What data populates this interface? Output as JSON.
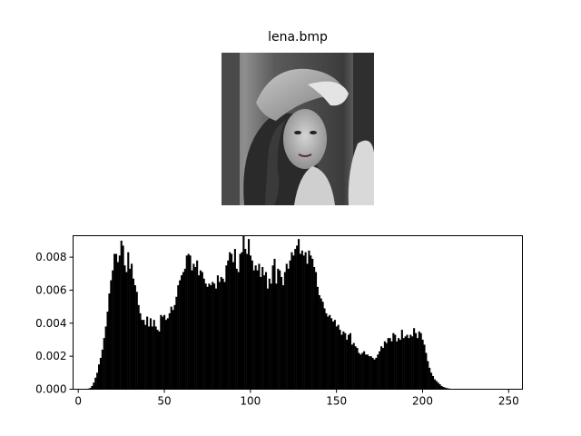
{
  "image_panel": {
    "title": "lena.bmp",
    "image_description": "grayscale photograph thumbnail"
  },
  "chart_data": {
    "type": "bar",
    "title": "",
    "xlabel": "",
    "ylabel": "",
    "xlim": [
      -3,
      258
    ],
    "ylim": [
      0,
      0.0093
    ],
    "xticks": [
      0,
      50,
      100,
      150,
      200,
      250
    ],
    "yticks": [
      0.0,
      0.002,
      0.004,
      0.006,
      0.008
    ],
    "ytick_labels": [
      "0.000",
      "0.002",
      "0.004",
      "0.006",
      "0.008"
    ],
    "bar_color": "#000000",
    "grid": false,
    "x": [
      0,
      1,
      2,
      3,
      4,
      5,
      6,
      7,
      8,
      9,
      10,
      11,
      12,
      13,
      14,
      15,
      16,
      17,
      18,
      19,
      20,
      21,
      22,
      23,
      24,
      25,
      26,
      27,
      28,
      29,
      30,
      31,
      32,
      33,
      34,
      35,
      36,
      37,
      38,
      39,
      40,
      41,
      42,
      43,
      44,
      45,
      46,
      47,
      48,
      49,
      50,
      51,
      52,
      53,
      54,
      55,
      56,
      57,
      58,
      59,
      60,
      61,
      62,
      63,
      64,
      65,
      66,
      67,
      68,
      69,
      70,
      71,
      72,
      73,
      74,
      75,
      76,
      77,
      78,
      79,
      80,
      81,
      82,
      83,
      84,
      85,
      86,
      87,
      88,
      89,
      90,
      91,
      92,
      93,
      94,
      95,
      96,
      97,
      98,
      99,
      100,
      101,
      102,
      103,
      104,
      105,
      106,
      107,
      108,
      109,
      110,
      111,
      112,
      113,
      114,
      115,
      116,
      117,
      118,
      119,
      120,
      121,
      122,
      123,
      124,
      125,
      126,
      127,
      128,
      129,
      130,
      131,
      132,
      133,
      134,
      135,
      136,
      137,
      138,
      139,
      140,
      141,
      142,
      143,
      144,
      145,
      146,
      147,
      148,
      149,
      150,
      151,
      152,
      153,
      154,
      155,
      156,
      157,
      158,
      159,
      160,
      161,
      162,
      163,
      164,
      165,
      166,
      167,
      168,
      169,
      170,
      171,
      172,
      173,
      174,
      175,
      176,
      177,
      178,
      179,
      180,
      181,
      182,
      183,
      184,
      185,
      186,
      187,
      188,
      189,
      190,
      191,
      192,
      193,
      194,
      195,
      196,
      197,
      198,
      199,
      200,
      201,
      202,
      203,
      204,
      205,
      206,
      207,
      208,
      209,
      210,
      211,
      212,
      213,
      214,
      215,
      216,
      217,
      218,
      219,
      220,
      221,
      222,
      223,
      224,
      225,
      226,
      227,
      228,
      229,
      230,
      231,
      232,
      233,
      234,
      235,
      236,
      237,
      238,
      239,
      240,
      241,
      242,
      243,
      244,
      245,
      246,
      247,
      248,
      249,
      250,
      251,
      252,
      253,
      254,
      255
    ],
    "values": [
      0,
      0,
      0,
      0,
      0,
      1e-05,
      4e-05,
      8e-05,
      0.0002,
      0.0004,
      0.0007,
      0.001,
      0.0015,
      0.0019,
      0.0024,
      0.0031,
      0.0038,
      0.0047,
      0.0058,
      0.0066,
      0.0072,
      0.0082,
      0.0082,
      0.0077,
      0.0081,
      0.009,
      0.0087,
      0.0075,
      0.0071,
      0.0083,
      0.0073,
      0.0076,
      0.0067,
      0.0063,
      0.0059,
      0.0051,
      0.0046,
      0.0042,
      0.0042,
      0.0039,
      0.0044,
      0.0038,
      0.0043,
      0.0038,
      0.0042,
      0.0038,
      0.0036,
      0.0035,
      0.0045,
      0.0044,
      0.0045,
      0.0042,
      0.0043,
      0.0046,
      0.005,
      0.0048,
      0.0051,
      0.0056,
      0.0063,
      0.0066,
      0.0069,
      0.0071,
      0.0073,
      0.0081,
      0.0082,
      0.0081,
      0.0072,
      0.0076,
      0.0074,
      0.0078,
      0.0069,
      0.0072,
      0.0071,
      0.0067,
      0.0064,
      0.0062,
      0.0064,
      0.0063,
      0.0065,
      0.0064,
      0.0061,
      0.0069,
      0.0065,
      0.0068,
      0.0067,
      0.0065,
      0.0075,
      0.0078,
      0.0083,
      0.0082,
      0.0077,
      0.0085,
      0.0073,
      0.0071,
      0.0082,
      0.0083,
      0.0093,
      0.0085,
      0.0082,
      0.0091,
      0.0081,
      0.0078,
      0.0072,
      0.0075,
      0.0072,
      0.0076,
      0.0068,
      0.0074,
      0.0069,
      0.0071,
      0.0061,
      0.0067,
      0.0064,
      0.0075,
      0.0079,
      0.0064,
      0.0073,
      0.0072,
      0.0068,
      0.0063,
      0.0071,
      0.0076,
      0.0073,
      0.0078,
      0.0083,
      0.0081,
      0.0085,
      0.0087,
      0.0091,
      0.0082,
      0.0084,
      0.0081,
      0.0083,
      0.0076,
      0.0084,
      0.0081,
      0.0079,
      0.0074,
      0.0071,
      0.0062,
      0.0057,
      0.0055,
      0.0053,
      0.0049,
      0.0046,
      0.0044,
      0.0045,
      0.0043,
      0.0041,
      0.0042,
      0.0038,
      0.0039,
      0.0036,
      0.0033,
      0.0035,
      0.0034,
      0.003,
      0.0033,
      0.0034,
      0.0027,
      0.0028,
      0.0026,
      0.0025,
      0.0022,
      0.0021,
      0.0022,
      0.0023,
      0.0021,
      0.0021,
      0.002,
      0.002,
      0.0019,
      0.0018,
      0.0019,
      0.0021,
      0.0023,
      0.0026,
      0.0025,
      0.0029,
      0.0028,
      0.0031,
      0.0031,
      0.0029,
      0.0034,
      0.0033,
      0.0029,
      0.0031,
      0.003,
      0.0036,
      0.0031,
      0.0032,
      0.0033,
      0.0031,
      0.0033,
      0.0032,
      0.0037,
      0.0034,
      0.0031,
      0.0035,
      0.0034,
      0.003,
      0.0027,
      0.0022,
      0.0017,
      0.0013,
      0.001,
      0.0008,
      0.0006,
      0.0005,
      0.0004,
      0.0003,
      0.0002,
      0.00014,
      0.0001,
      7e-05,
      5e-05,
      3e-05,
      2e-05,
      1e-05,
      0,
      0,
      0,
      0,
      0,
      0,
      0,
      0,
      0,
      0,
      0,
      0,
      0,
      0,
      0,
      0,
      0,
      0,
      0,
      0,
      0,
      0,
      0,
      0,
      0,
      0,
      0,
      0,
      0,
      0,
      0,
      0,
      0,
      0,
      0,
      0,
      0
    ]
  }
}
